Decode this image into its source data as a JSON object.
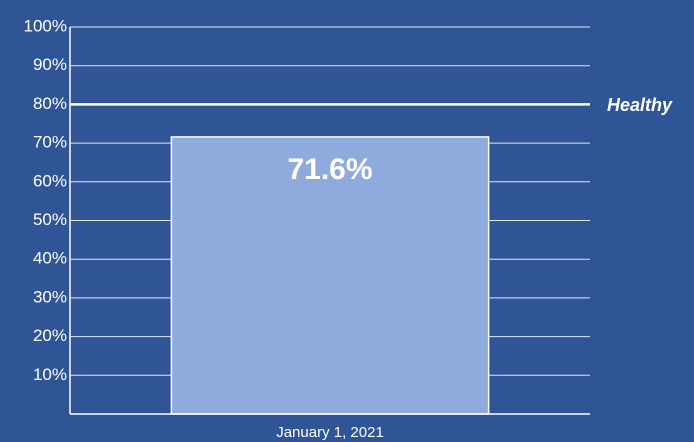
{
  "chart_data": {
    "type": "bar",
    "categories": [
      "January 1, 2021"
    ],
    "values": [
      71.6
    ],
    "value_labels": [
      "71.6%"
    ],
    "color": "#8faadc",
    "ylim": [
      0,
      100
    ],
    "yticks": [
      {
        "value": 10,
        "label": "10%"
      },
      {
        "value": 20,
        "label": "20%"
      },
      {
        "value": 30,
        "label": "30%"
      },
      {
        "value": 40,
        "label": "40%"
      },
      {
        "value": 50,
        "label": "50%"
      },
      {
        "value": 60,
        "label": "60%"
      },
      {
        "value": 70,
        "label": "70%"
      },
      {
        "value": 80,
        "label": "80%"
      },
      {
        "value": 90,
        "label": "90%"
      },
      {
        "value": 100,
        "label": "100%"
      }
    ],
    "grid": true,
    "reference_lines": [
      {
        "value": 80,
        "label": "Healthy"
      }
    ]
  }
}
